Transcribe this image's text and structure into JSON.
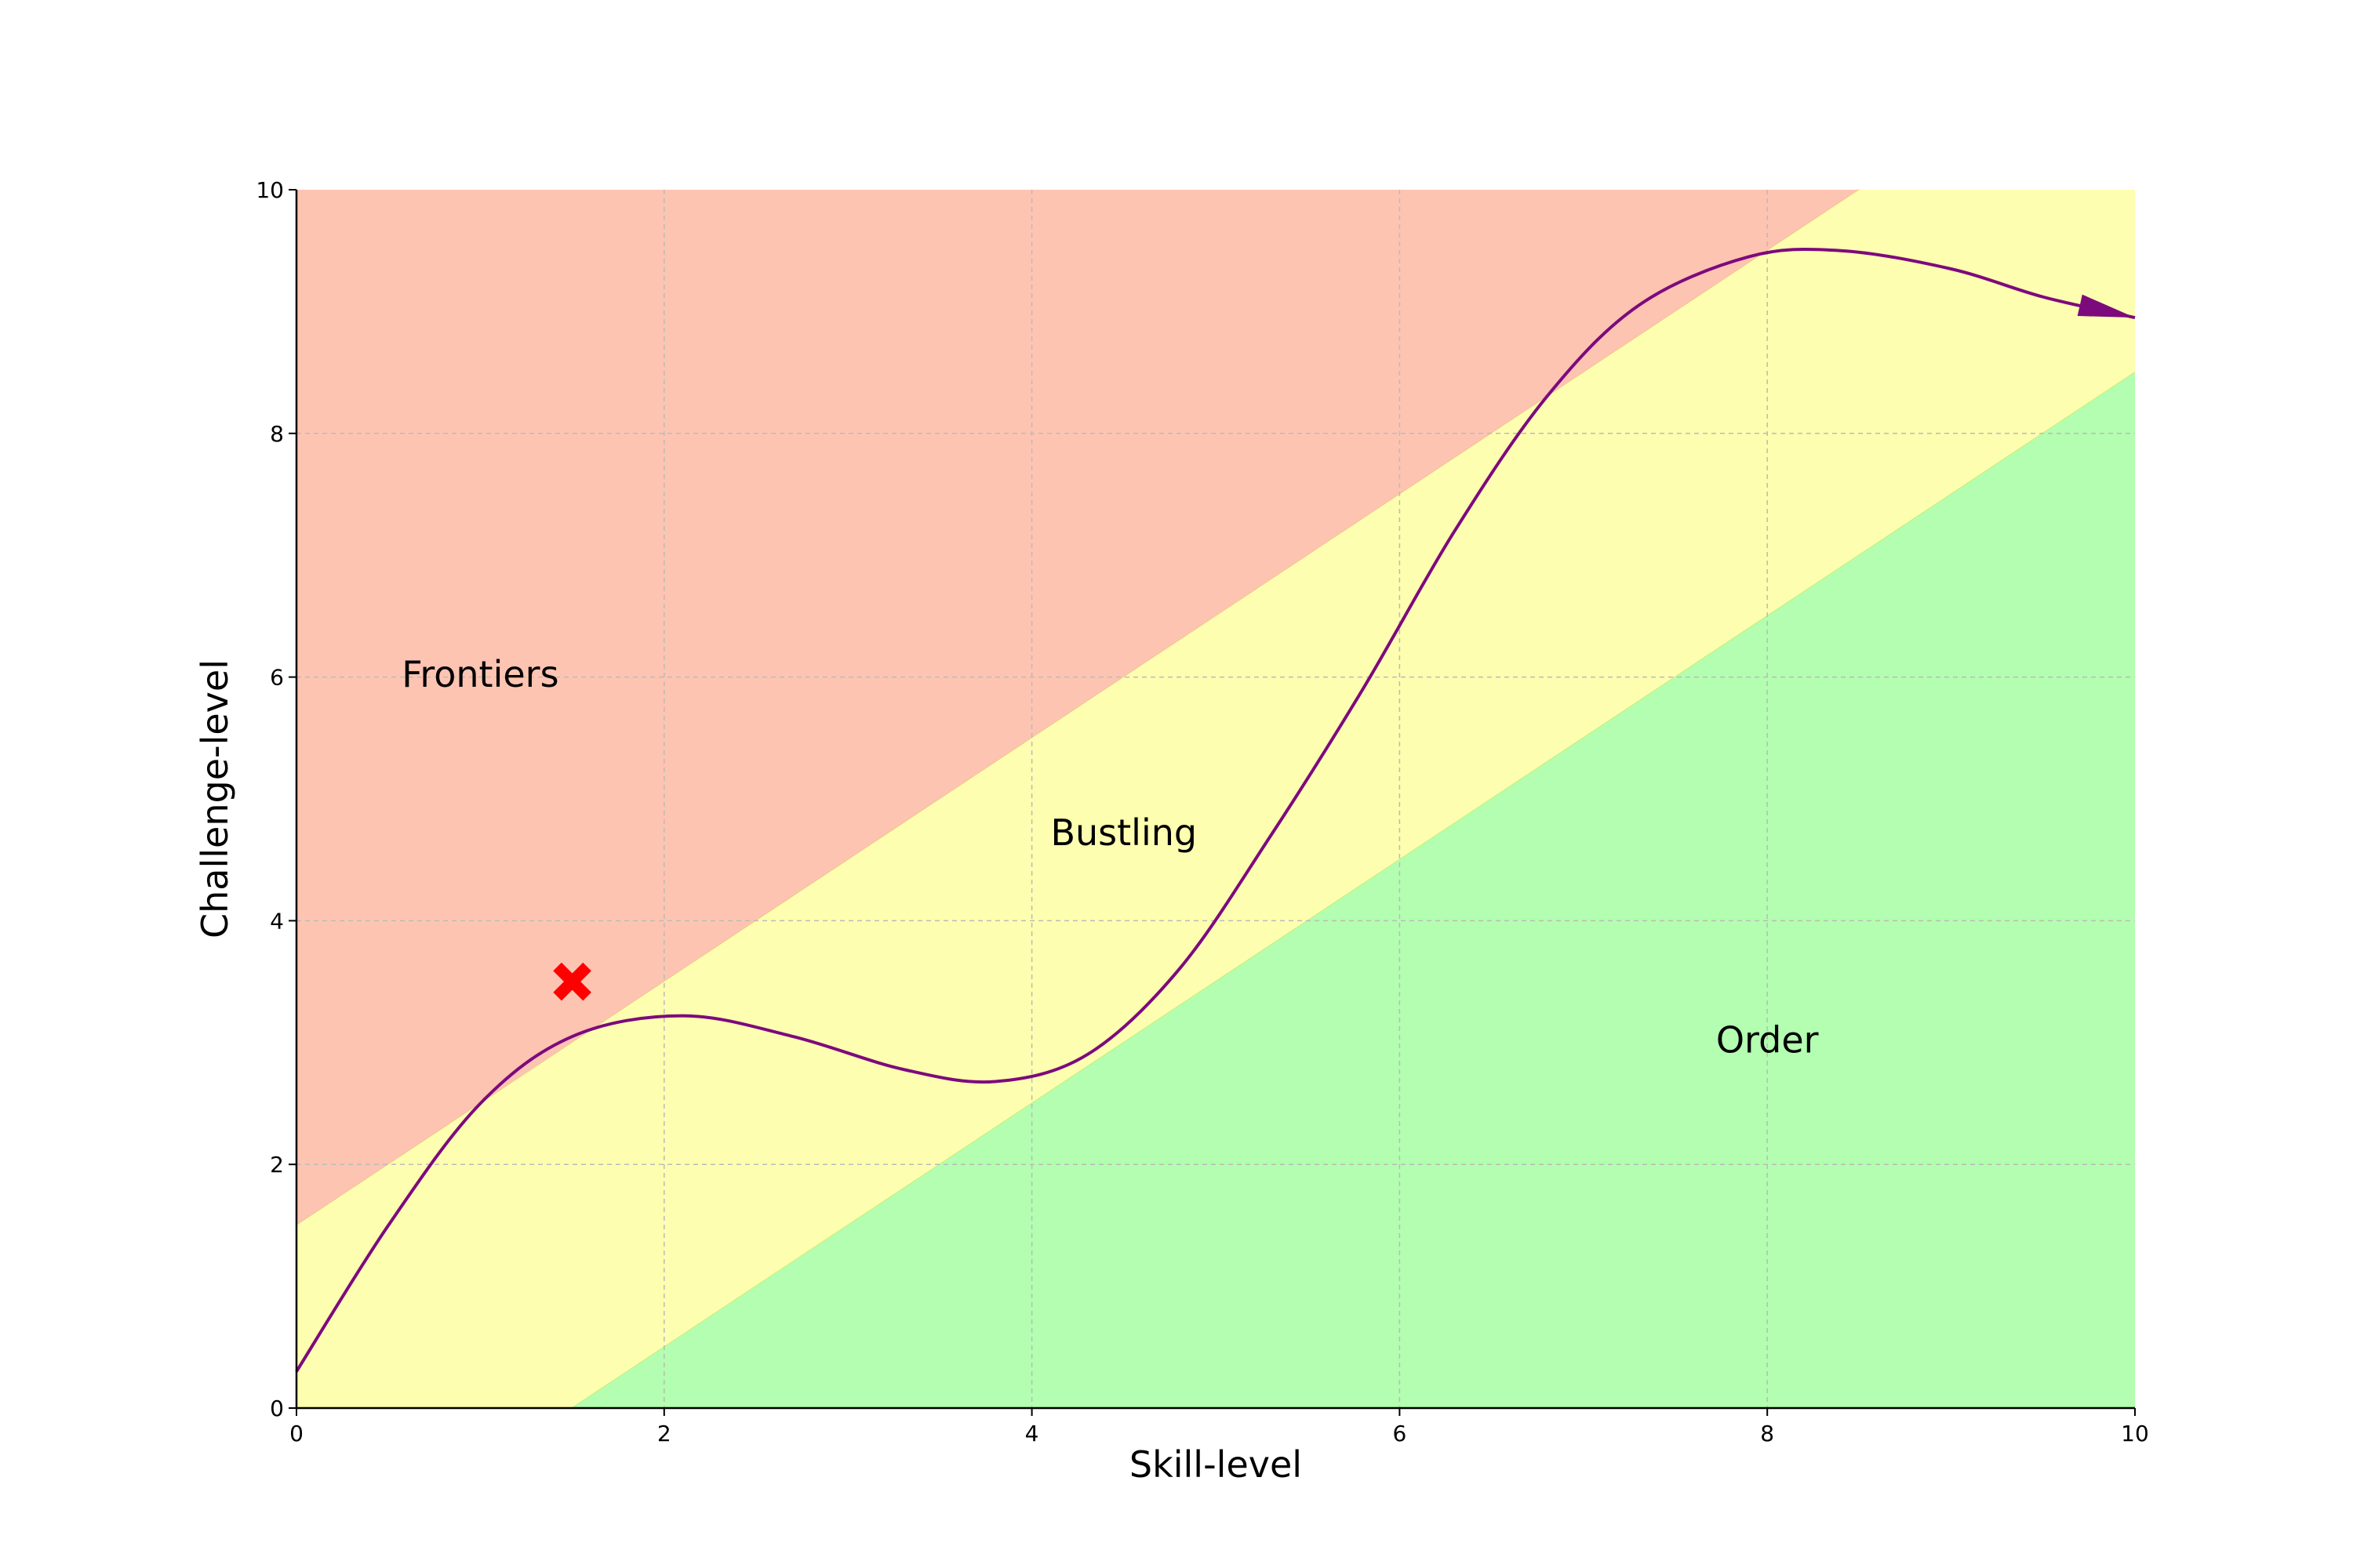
{
  "chart_data": {
    "type": "area",
    "xlabel": "Skill-level",
    "ylabel": "Challenge-level",
    "xlim": [
      0,
      10
    ],
    "ylim": [
      0,
      10
    ],
    "xticks": [
      "0",
      "2",
      "4",
      "6",
      "8",
      "10"
    ],
    "yticks": [
      "0",
      "2",
      "4",
      "6",
      "8",
      "10"
    ],
    "grid": true,
    "regions": [
      {
        "label": "Frontiers",
        "color": "#fec4b2",
        "lower_boundary": {
          "slope": 1,
          "intercept": 1.5
        },
        "label_at": {
          "x": 1.0,
          "y": 6.0
        }
      },
      {
        "label": "Bustling",
        "color": "#fefeb0",
        "lower_boundary": {
          "slope": 1,
          "intercept": -1.5
        },
        "upper_boundary": {
          "slope": 1,
          "intercept": 1.5
        },
        "label_at": {
          "x": 4.5,
          "y": 4.7
        }
      },
      {
        "label": "Order",
        "color": "#b3feb0",
        "upper_boundary": {
          "slope": 1,
          "intercept": -1.5
        },
        "label_at": {
          "x": 8.0,
          "y": 3.0
        }
      }
    ],
    "path": {
      "color": "#7d0a7d",
      "x": [
        0,
        0.5,
        1.0,
        1.5,
        2.1,
        2.7,
        3.3,
        3.8,
        4.3,
        4.8,
        5.3,
        5.8,
        6.3,
        6.8,
        7.3,
        7.9,
        8.4,
        9.0,
        9.5,
        10.0
      ],
      "y": [
        0.3,
        1.5,
        2.5,
        3.05,
        3.22,
        3.05,
        2.78,
        2.68,
        2.9,
        3.6,
        4.7,
        5.9,
        7.2,
        8.3,
        9.05,
        9.45,
        9.5,
        9.35,
        9.12,
        8.95
      ],
      "end_arrow": true
    },
    "marker": {
      "x": 1.5,
      "y": 3.5,
      "shape": "x",
      "color": "#ff0000"
    }
  }
}
